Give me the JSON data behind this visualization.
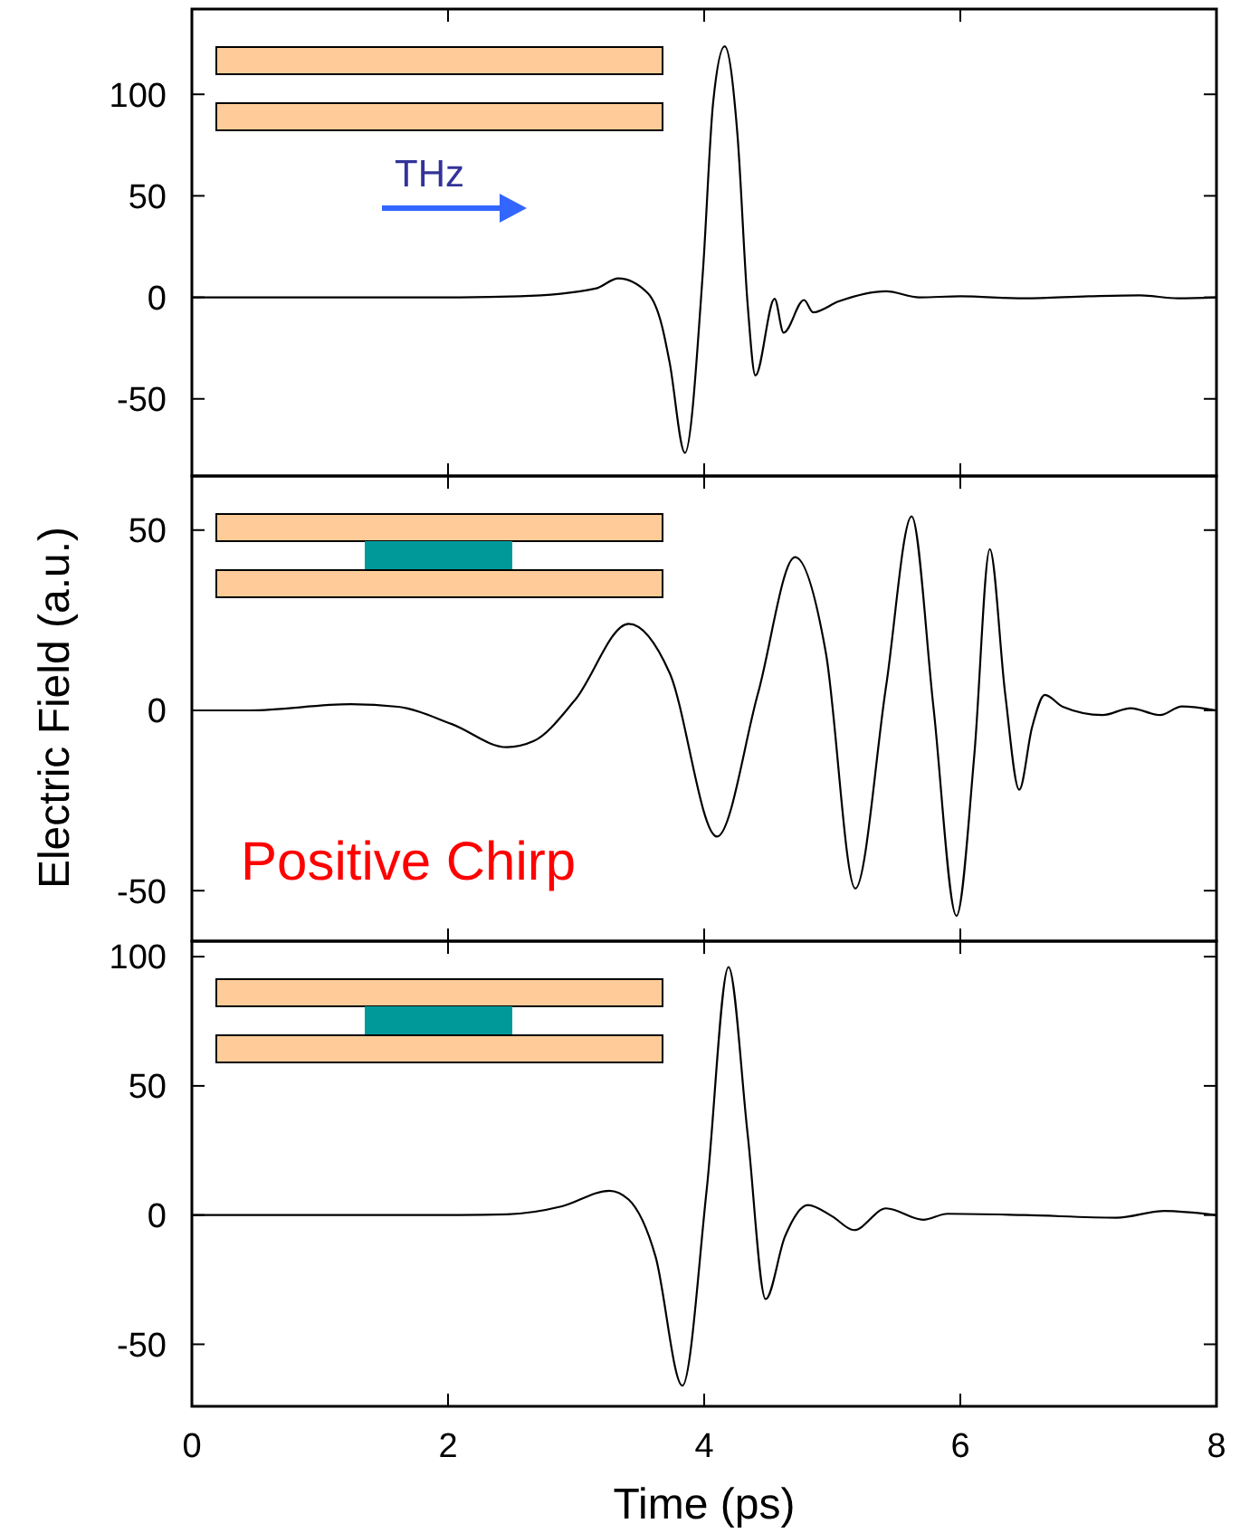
{
  "chart_data": [
    {
      "type": "line",
      "tick_labels": "y",
      "xlim": [
        0,
        8
      ],
      "xticks": [
        0,
        2,
        4,
        6,
        8
      ],
      "ylim": [
        -88,
        142
      ],
      "yticks": [
        -50,
        0,
        50,
        100
      ],
      "annotations": [
        "THz"
      ],
      "series": [
        {
          "color": "#000000",
          "x": [
            0,
            0.5,
            1,
            1.5,
            2,
            2.56,
            3.15,
            3.33,
            3.56,
            3.67,
            3.73,
            3.85,
            3.99,
            4.07,
            4.16,
            4.26,
            4.34,
            4.4,
            4.55,
            4.62,
            4.78,
            4.85,
            5.05,
            5.42,
            5.68,
            6,
            6.5,
            7,
            7.4,
            7.7,
            8
          ],
          "values": [
            0,
            0,
            0,
            0,
            0,
            0.5,
            4.3,
            9.3,
            2,
            -14,
            -32,
            -76.6,
            12.7,
            96,
            123.7,
            80,
            -4,
            -38.5,
            -0.7,
            -17.4,
            -1.3,
            -7.4,
            -2,
            3,
            0,
            0.5,
            -0.5,
            0.5,
            1,
            -0.5,
            0
          ]
        }
      ]
    },
    {
      "type": "line",
      "tick_labels": "y",
      "xlim": [
        0,
        8
      ],
      "xticks": [
        0,
        2,
        4,
        6,
        8
      ],
      "ylim": [
        -64,
        65
      ],
      "yticks": [
        -50,
        0,
        50
      ],
      "ylabel": "Electric Field (a.u.)",
      "annotations": [
        "Positive Chirp"
      ],
      "series": [
        {
          "color": "#000000",
          "x": [
            0.02,
            0.45,
            1.24,
            1.61,
            2.03,
            2.46,
            2.67,
            2.99,
            3.41,
            3.73,
            4.1,
            4.42,
            4.71,
            4.95,
            5.18,
            5.42,
            5.62,
            5.79,
            5.97,
            6.11,
            6.23,
            6.35,
            6.46,
            6.56,
            6.66,
            6.8,
            7.11,
            7.33,
            7.56,
            7.73,
            8
          ],
          "values": [
            0,
            0,
            1.7,
            1,
            -3.8,
            -10.2,
            -8.5,
            2.8,
            24,
            10.4,
            -35,
            4.7,
            42.5,
            16,
            -49.4,
            6.6,
            53.8,
            1,
            -57,
            -12,
            44.7,
            4.7,
            -22,
            -4.7,
            4.3,
            1,
            -1.3,
            0.6,
            -1.3,
            1.1,
            0
          ]
        }
      ]
    },
    {
      "type": "line",
      "xlim": [
        0,
        8
      ],
      "xticks": [
        0,
        2,
        4,
        6,
        8
      ],
      "ylim": [
        -74,
        106
      ],
      "yticks": [
        -50,
        0,
        50,
        100
      ],
      "xlabel": "Time (ps)",
      "series": [
        {
          "color": "#000000",
          "x": [
            0,
            0.5,
            1,
            1.5,
            2,
            2.46,
            2.89,
            3.26,
            3.41,
            3.62,
            3.83,
            4.02,
            4.19,
            4.34,
            4.48,
            4.63,
            4.81,
            5,
            5.17,
            5.42,
            5.71,
            5.9,
            6.5,
            7.22,
            7.59,
            8
          ],
          "values": [
            0,
            0,
            0,
            0,
            0,
            0.3,
            3.4,
            9.4,
            6,
            -16,
            -66,
            10,
            96,
            31,
            -32.5,
            -8.4,
            3.9,
            -0.5,
            -5.8,
            2.6,
            -1.8,
            0.5,
            0,
            -1,
            1.6,
            0
          ]
        }
      ]
    }
  ]
}
